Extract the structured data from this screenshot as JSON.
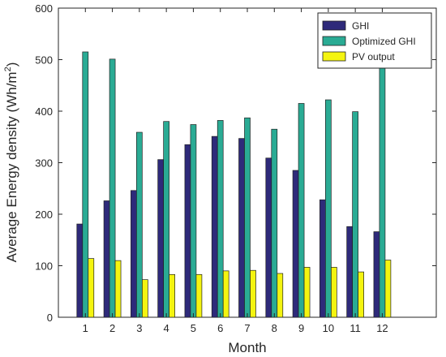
{
  "chart_data": {
    "type": "bar",
    "title": "",
    "xlabel": "Month",
    "ylabel_main": "Average Energy density (Wh/m",
    "ylabel_sup": "2",
    "ylabel_close": ")",
    "categories": [
      "1",
      "2",
      "3",
      "4",
      "5",
      "6",
      "7",
      "8",
      "9",
      "10",
      "11",
      "12"
    ],
    "series": [
      {
        "name": "GHI",
        "color": "#2e2a7a",
        "values": [
          181,
          226,
          246,
          306,
          335,
          351,
          347,
          309,
          285,
          228,
          176,
          166
        ]
      },
      {
        "name": "Optimized GHI",
        "color": "#2aab94",
        "values": [
          515,
          501,
          359,
          380,
          374,
          382,
          387,
          365,
          415,
          422,
          399,
          490
        ]
      },
      {
        "name": "PV output",
        "color": "#f4f410",
        "values": [
          114,
          110,
          73,
          83,
          83,
          90,
          91,
          85,
          97,
          97,
          88,
          111
        ]
      }
    ],
    "xlim": [
      0,
      14
    ],
    "ylim": [
      0,
      600
    ],
    "yticks": [
      "0",
      "100",
      "200",
      "300",
      "400",
      "500",
      "600"
    ],
    "legend": "top-right",
    "grid": false
  }
}
